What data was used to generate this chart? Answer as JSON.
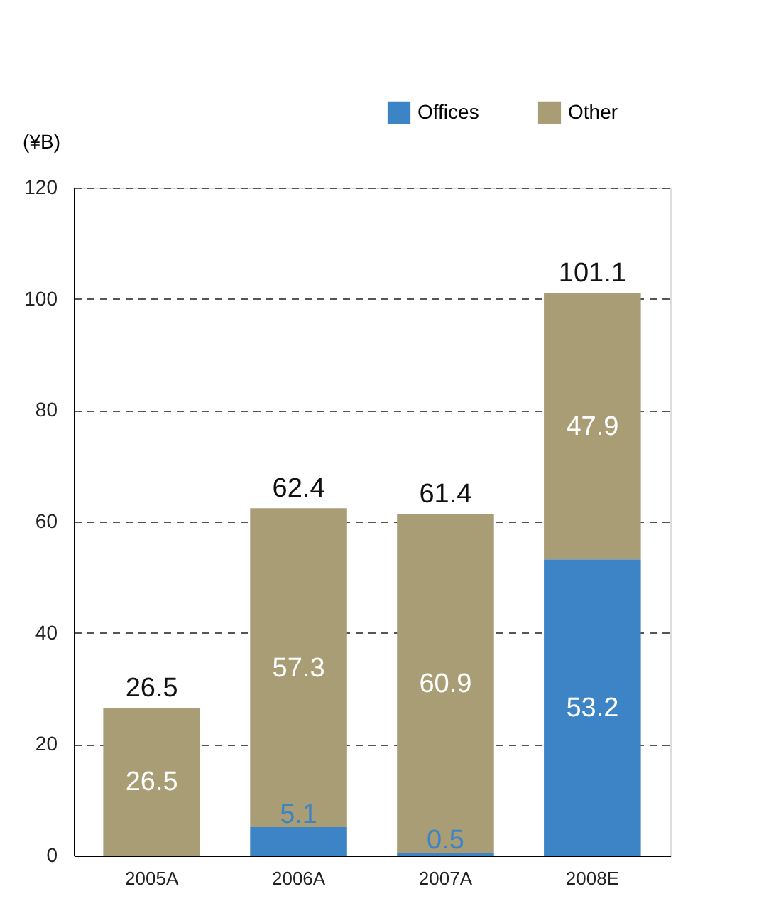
{
  "chart_data": {
    "type": "bar",
    "stacked": true,
    "ylabel": "(¥B)",
    "categories": [
      "2005A",
      "2006A",
      "2007A",
      "2008E"
    ],
    "series": [
      {
        "name": "Offices",
        "color": "#3d84c6",
        "values": [
          null,
          5.1,
          0.5,
          53.2
        ]
      },
      {
        "name": "Other",
        "color": "#a99d76",
        "values": [
          26.5,
          57.3,
          60.9,
          47.9
        ]
      }
    ],
    "totals": [
      "26.5",
      "62.4",
      "61.4",
      "101.1"
    ],
    "data_labels": true,
    "ylim": [
      0,
      120
    ],
    "yticks": [
      0,
      20,
      40,
      60,
      80,
      100,
      120
    ],
    "grid": "y",
    "line_style": "dashed",
    "legend": "top right"
  }
}
